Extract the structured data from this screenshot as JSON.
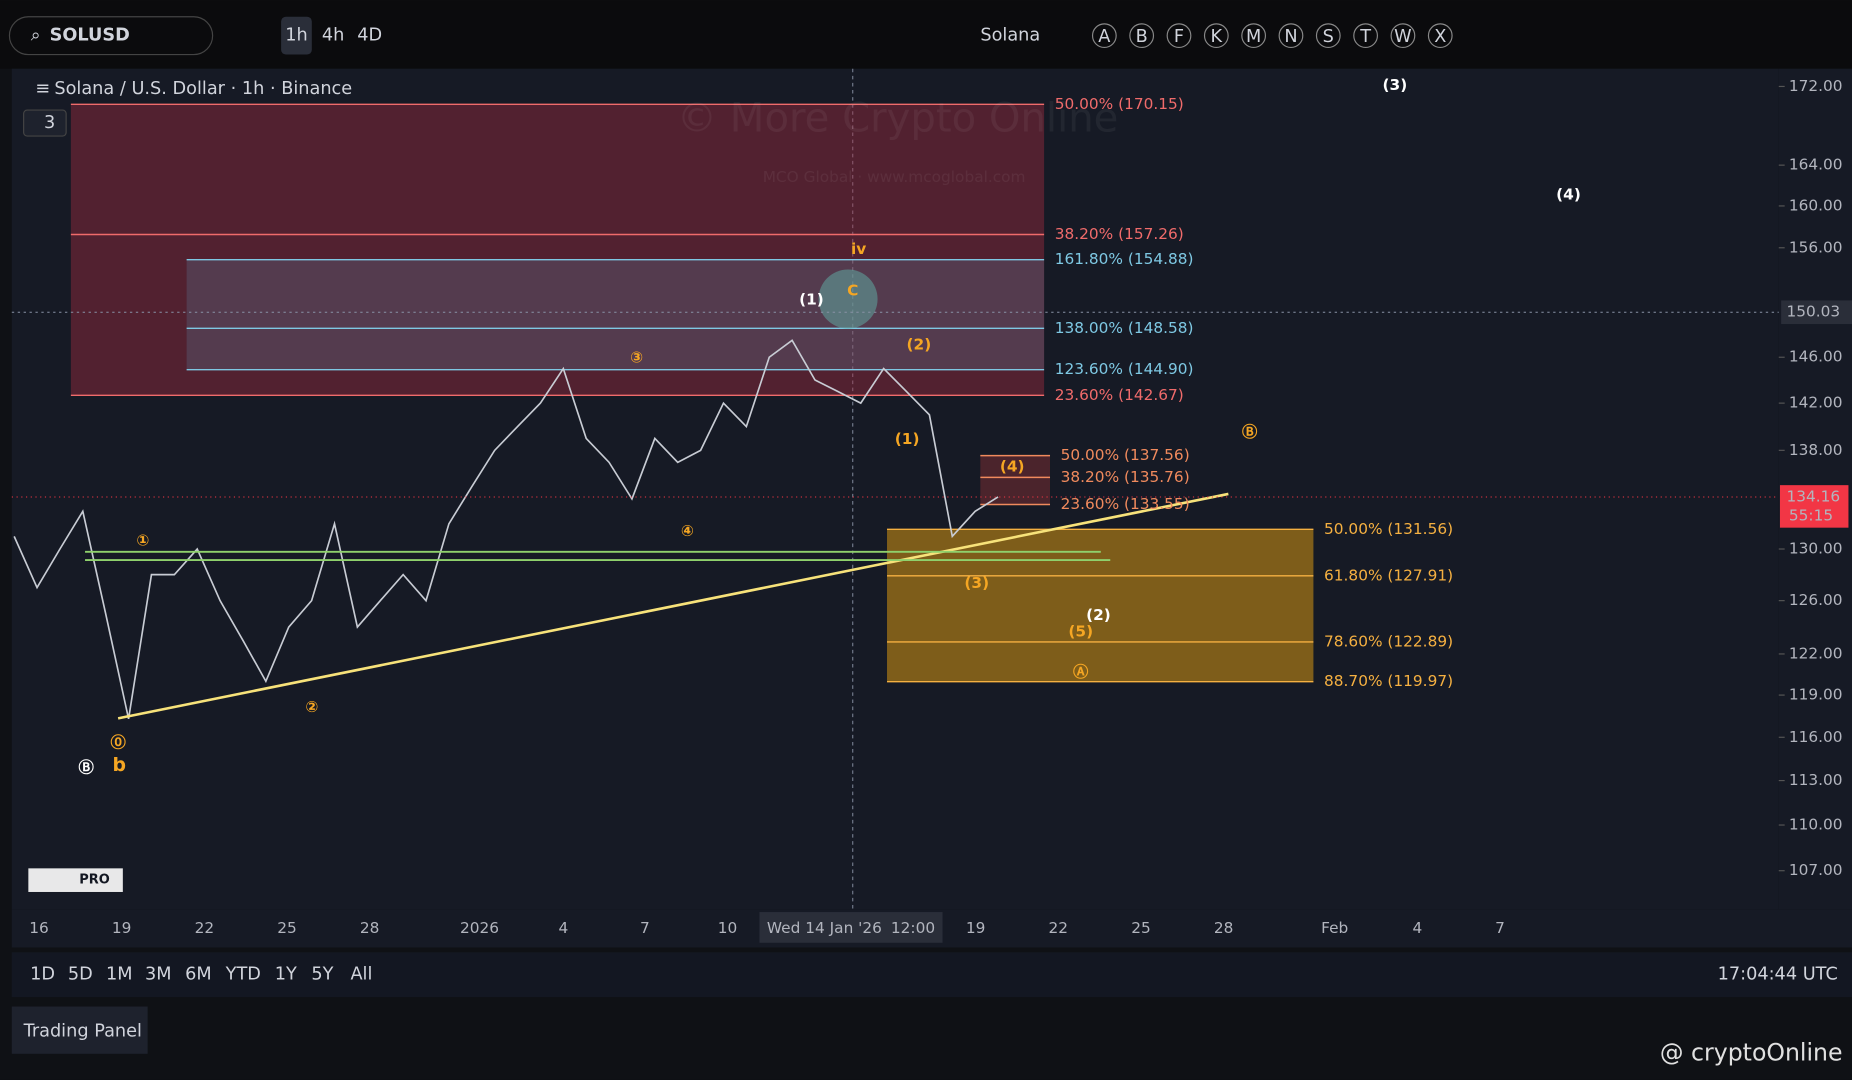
{
  "toolbar": {
    "symbol": "SOLUSD",
    "intervals": [
      "1h",
      "4h",
      "4D"
    ],
    "name": "Solana",
    "letters": [
      "A",
      "B",
      "F",
      "K",
      "M",
      "N",
      "S",
      "T",
      "W",
      "X"
    ]
  },
  "chart_data": {
    "type": "candlestick-line",
    "title": "Solana / U.S. Dollar · 1h · Binance",
    "indicator_count": "3",
    "watermark": "© More Crypto Online",
    "watermark_sub": "MCO Global · www.mcoglobal.com",
    "log_scale": true,
    "ylim": [
      107,
      172
    ],
    "yticks": [
      {
        "value": 172,
        "label": "172.00"
      },
      {
        "value": 164,
        "label": "164.00"
      },
      {
        "value": 160,
        "label": "160.00"
      },
      {
        "value": 156,
        "label": "156.00"
      },
      {
        "value": 146,
        "label": "146.00"
      },
      {
        "value": 142,
        "label": "142.00"
      },
      {
        "value": 138,
        "label": "138.00"
      },
      {
        "value": 130,
        "label": "130.00"
      },
      {
        "value": 126,
        "label": "126.00"
      },
      {
        "value": 122,
        "label": "122.00"
      },
      {
        "value": 119,
        "label": "119.00"
      },
      {
        "value": 116,
        "label": "116.00"
      },
      {
        "value": 113,
        "label": "113.00"
      },
      {
        "value": 110,
        "label": "110.00"
      },
      {
        "value": 107,
        "label": "107.00"
      }
    ],
    "xticks": [
      "16",
      "19",
      "22",
      "25",
      "28",
      "2026",
      "4",
      "7",
      "10",
      "Wed 14 Jan '26",
      "12:00",
      "19",
      "22",
      "25",
      "28",
      "Feb",
      "4",
      "7"
    ],
    "crosshair_price": {
      "value": 150.03,
      "label": "150.03"
    },
    "last_price": {
      "value": 134.16,
      "label": "134.16",
      "countdown": "55:15"
    },
    "series": [
      {
        "name": "SOLUSD",
        "color": "#c8ccd4",
        "values": [
          131,
          127,
          130,
          133,
          125,
          117.3,
          128,
          128,
          130,
          126,
          123,
          120,
          124,
          126,
          132,
          124,
          126,
          128,
          126,
          132,
          135,
          138,
          140,
          142,
          145,
          139,
          137,
          134,
          139,
          137,
          138,
          142,
          140,
          146,
          147.5,
          144,
          143,
          142,
          145,
          143,
          141,
          131,
          133,
          134.16
        ]
      }
    ],
    "fib_levels": [
      {
        "group": "red",
        "value": 170.15,
        "label": "50.00% (170.15)",
        "color": "#f06b6b"
      },
      {
        "group": "red",
        "value": 157.26,
        "label": "38.20% (157.26)",
        "color": "#f06b6b"
      },
      {
        "group": "blue",
        "value": 154.88,
        "label": "161.80% (154.88)",
        "color": "#7ec8e3"
      },
      {
        "group": "blue",
        "value": 148.58,
        "label": "138.00% (148.58)",
        "color": "#7ec8e3"
      },
      {
        "group": "blue",
        "value": 144.9,
        "label": "123.60% (144.90)",
        "color": "#7ec8e3"
      },
      {
        "group": "red",
        "value": 142.67,
        "label": "23.60% (142.67)",
        "color": "#f06b6b"
      },
      {
        "group": "small",
        "value": 137.56,
        "label": "50.00% (137.56)",
        "color": "#f08a5d"
      },
      {
        "group": "small",
        "value": 135.76,
        "label": "38.20% (135.76)",
        "color": "#f08a5d"
      },
      {
        "group": "small",
        "value": 133.55,
        "label": "23.60% (133.55)",
        "color": "#f08a5d"
      },
      {
        "group": "yellow",
        "value": 131.56,
        "label": "50.00% (131.56)",
        "color": "#f5b041"
      },
      {
        "group": "yellow",
        "value": 127.91,
        "label": "61.80% (127.91)",
        "color": "#f5b041"
      },
      {
        "group": "yellow",
        "value": 122.89,
        "label": "78.60% (122.89)",
        "color": "#f5b041"
      },
      {
        "group": "yellow",
        "value": 119.97,
        "label": "88.70% (119.97)",
        "color": "#f5b041"
      }
    ],
    "annotations": [
      "(3)",
      "(4)",
      "iv",
      "C",
      "(1)",
      "(2)",
      "③",
      "(1)",
      "Ⓑ",
      "(4)",
      "①",
      "④",
      "(3)",
      "(2)",
      "(5)",
      "Ⓐ",
      "②",
      "⓪",
      "b",
      "Ⓑ"
    ]
  },
  "bottom": {
    "ranges": [
      "1D",
      "5D",
      "1M",
      "3M",
      "6M",
      "YTD",
      "1Y",
      "5Y",
      "All"
    ],
    "time": "17:04:44 UTC",
    "panel": "Trading Panel",
    "badge": "PRO",
    "credit": "@ cryptoOnline"
  }
}
